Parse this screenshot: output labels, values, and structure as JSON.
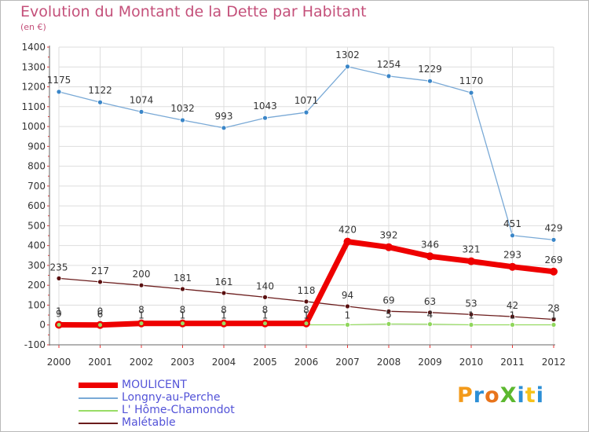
{
  "title": "Evolution du Montant de la Dette par Habitant",
  "subtitle": "(en €)",
  "logo_text": "ProXiti",
  "logo_colors": [
    "#f39a1a",
    "#2c8fd6",
    "#e8741c",
    "#5cb82f",
    "#2c8fd6",
    "#f7c21a",
    "#2c8fd6"
  ],
  "chart_data": {
    "type": "line",
    "categories": [
      "2000",
      "2001",
      "2002",
      "2003",
      "2004",
      "2005",
      "2006",
      "2007",
      "2008",
      "2009",
      "2010",
      "2011",
      "2012"
    ],
    "ylim": [
      -100,
      1400
    ],
    "yticks": [
      -100,
      0,
      100,
      200,
      300,
      400,
      500,
      600,
      700,
      800,
      900,
      1000,
      1100,
      1200,
      1300,
      1400
    ],
    "ytick_labels": [
      "-100",
      "0",
      "100",
      "200",
      "300",
      "400",
      "500",
      "600",
      "700",
      "800",
      "900",
      "1000",
      "1100",
      "1200",
      "1300",
      "1400"
    ],
    "grid": true,
    "legend_position": "bottom-left",
    "series": [
      {
        "name": "MOULICENT",
        "color": "#ee0000",
        "values": [
          1,
          0,
          8,
          8,
          8,
          8,
          8,
          420,
          392,
          346,
          321,
          293,
          269
        ],
        "labels": [
          "1",
          "0",
          "8",
          "8",
          "8",
          "8",
          "8",
          "420",
          "392",
          "346",
          "321",
          "293",
          "269"
        ]
      },
      {
        "name": "Longny-au-Perche",
        "color": "#79a9d6",
        "values": [
          1175,
          1122,
          1074,
          1032,
          993,
          1043,
          1071,
          1302,
          1254,
          1229,
          1170,
          451,
          429
        ],
        "labels": [
          "1175",
          "1122",
          "1074",
          "1032",
          "993",
          "1043",
          "1071",
          "1302",
          "1254",
          "1229",
          "1170",
          "451",
          "429"
        ]
      },
      {
        "name": "L' Hôme-Chamondot",
        "color": "#99dd66",
        "values": [
          9,
          6,
          1,
          1,
          1,
          1,
          1,
          1,
          5,
          4,
          1,
          1,
          1
        ],
        "labels": [
          "9",
          "6",
          "1",
          "1",
          "1",
          "1",
          "1",
          "1",
          "5",
          "4",
          "1",
          "1",
          "1"
        ]
      },
      {
        "name": "Malétable",
        "color": "#6b1c1c",
        "values": [
          235,
          217,
          200,
          181,
          161,
          140,
          118,
          94,
          69,
          63,
          53,
          42,
          28
        ],
        "labels": [
          "235",
          "217",
          "200",
          "181",
          "161",
          "140",
          "118",
          "94",
          "69",
          "63",
          "53",
          "42",
          "28"
        ]
      }
    ]
  }
}
